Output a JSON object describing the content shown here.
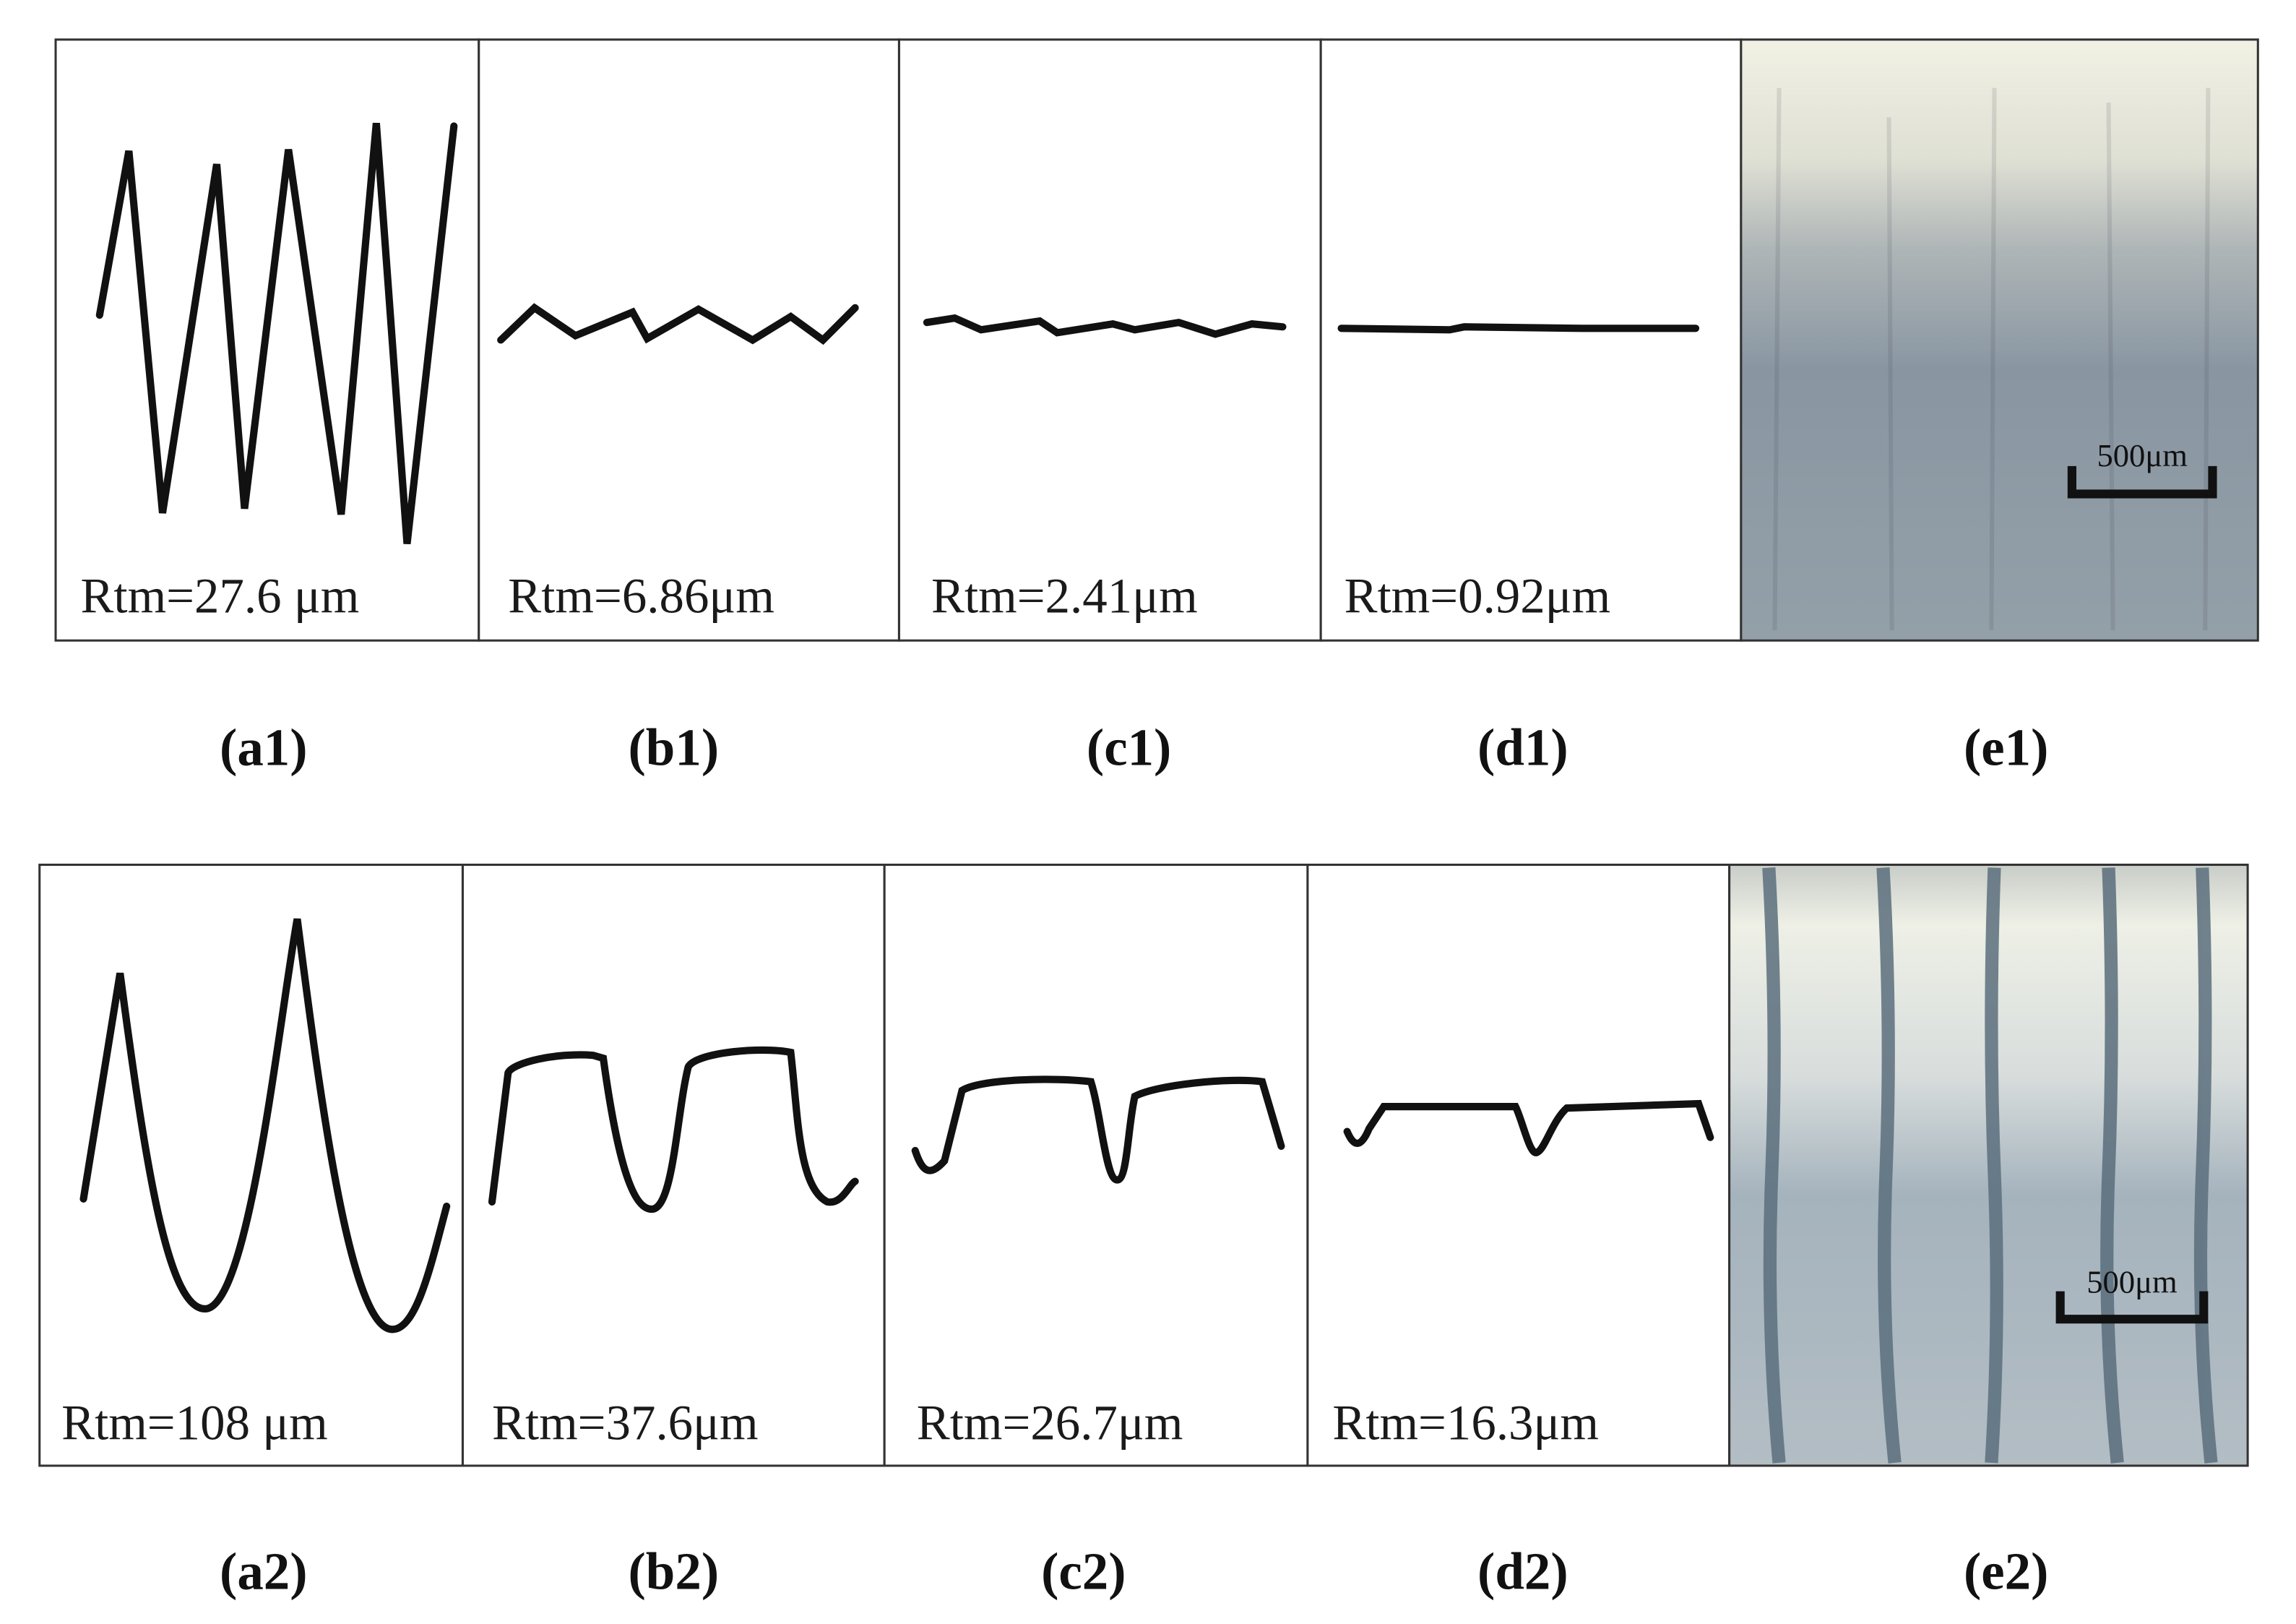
{
  "rows": [
    {
      "panels": [
        {
          "label": "Rtm=27.6 μm",
          "caption": "(a1)"
        },
        {
          "label": "Rtm=6.86μm",
          "caption": "(b1)"
        },
        {
          "label": "Rtm=2.41μm",
          "caption": "(c1)"
        },
        {
          "label": "Rtm=0.92μm",
          "caption": "(d1)"
        },
        {
          "scale_bar": "500μm",
          "caption": "(e1)"
        }
      ]
    },
    {
      "panels": [
        {
          "label": "Rtm=108 μm",
          "caption": "(a2)"
        },
        {
          "label": "Rtm=37.6μm",
          "caption": "(b2)"
        },
        {
          "label": "Rtm=26.7μm",
          "caption": "(c2)"
        },
        {
          "label": "Rtm=16.3μm",
          "caption": "(d2)"
        },
        {
          "scale_bar": "500μm",
          "caption": "(e2)"
        }
      ]
    }
  ]
}
